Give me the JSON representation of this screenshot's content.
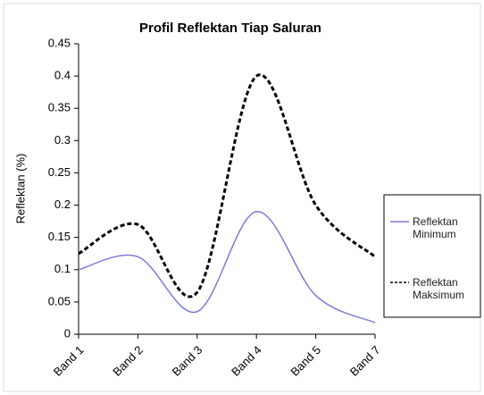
{
  "chart_data": {
    "type": "line",
    "title": "Profil Reflektan  Tiap Saluran",
    "y_label": "Reflektan (%)",
    "categories": [
      "Band 1",
      "Band 2",
      "Band 3",
      "Band 4",
      "Band 5",
      "Band 7"
    ],
    "series": [
      {
        "name": "Reflektan Minimum",
        "color": "#7b7bd9",
        "line_style": "solid",
        "values": [
          0.1,
          0.12,
          0.035,
          0.19,
          0.06,
          0.018
        ]
      },
      {
        "name": "Reflektan Maksimum",
        "color": "#000000",
        "line_style": "dashed",
        "values": [
          0.125,
          0.17,
          0.065,
          0.4,
          0.2,
          0.12
        ]
      }
    ],
    "ylim": [
      0,
      0.45
    ],
    "yticks": [
      0,
      0.05,
      0.1,
      0.15,
      0.2,
      0.25,
      0.3,
      0.35,
      0.4,
      0.45
    ],
    "legend": "right",
    "smooth": true
  }
}
